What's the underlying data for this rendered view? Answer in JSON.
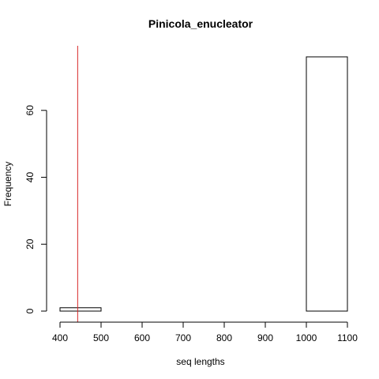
{
  "chart_data": {
    "type": "bar",
    "title": "Pinicola_enucleator",
    "xlabel": "seq lengths",
    "ylabel": "Frequency",
    "bins": [
      {
        "start": 400,
        "end": 500,
        "count": 1
      },
      {
        "start": 500,
        "end": 600,
        "count": 0
      },
      {
        "start": 600,
        "end": 700,
        "count": 0
      },
      {
        "start": 700,
        "end": 800,
        "count": 0
      },
      {
        "start": 800,
        "end": 900,
        "count": 0
      },
      {
        "start": 900,
        "end": 1000,
        "count": 0
      },
      {
        "start": 1000,
        "end": 1100,
        "count": 76
      }
    ],
    "xlim": [
      400,
      1100
    ],
    "ylim": [
      0,
      76
    ],
    "x_ticks": [
      400,
      500,
      600,
      700,
      800,
      900,
      1000,
      1100
    ],
    "y_ticks": [
      0,
      20,
      40,
      60
    ],
    "vline": {
      "x": 443,
      "color": "#d62728"
    },
    "grid": false,
    "bar_fill": "#ffffff",
    "bar_stroke": "#000000"
  }
}
